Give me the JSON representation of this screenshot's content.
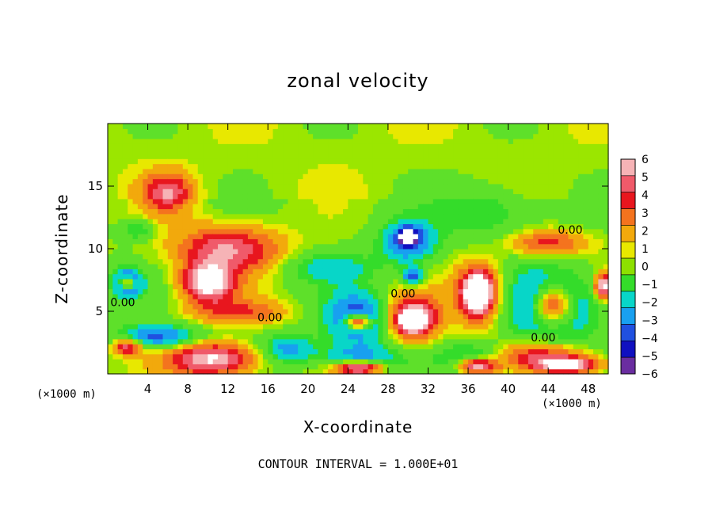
{
  "chart_data": {
    "type": "heatmap",
    "title": "zonal velocity",
    "xlabel": "X-coordinate",
    "ylabel": "Z-coordinate",
    "x_unit": "(×1000 m)",
    "x_ticks": [
      4,
      8,
      12,
      16,
      20,
      24,
      28,
      32,
      36,
      40,
      44,
      48
    ],
    "y_ticks": [
      5,
      10,
      15
    ],
    "xlim": [
      0,
      50
    ],
    "ylim": [
      0,
      20
    ],
    "colorbar": {
      "ticks": [
        6,
        5,
        4,
        3,
        2,
        1,
        0,
        -1,
        -2,
        -3,
        -4,
        -5,
        -6
      ],
      "colors": [
        "#f6b3b6",
        "#f05a6a",
        "#e8161e",
        "#f4731e",
        "#f2a90c",
        "#e8e800",
        "#8de000",
        "#34dc2a",
        "#08d6c8",
        "#18a0f0",
        "#2050e0",
        "#1010c0",
        "#6a2da0"
      ]
    },
    "contour_labels": [
      {
        "text": "0.00",
        "x": 1.5,
        "z": 5.4
      },
      {
        "text": "0.00",
        "x": 16.2,
        "z": 4.2
      },
      {
        "text": "0.00",
        "x": 29.5,
        "z": 6.1
      },
      {
        "text": "0.00",
        "x": 46.2,
        "z": 11.2
      },
      {
        "text": "0.00",
        "x": 43.5,
        "z": 2.6
      }
    ],
    "blobs": [
      {
        "x": 6,
        "z": 14.5,
        "rx": 3,
        "rz": 2,
        "v": 4.5
      },
      {
        "x": 12,
        "z": 10,
        "rx": 6.5,
        "rz": 2.4,
        "v": 5
      },
      {
        "x": 10,
        "z": 7.3,
        "rx": 3.2,
        "rz": 1.9,
        "v": 7
      },
      {
        "x": 2,
        "z": 7.3,
        "rx": 1.8,
        "rz": 1.3,
        "v": -6
      },
      {
        "x": 2,
        "z": 7.3,
        "rx": 1.1,
        "rz": 0.7,
        "v": 7
      },
      {
        "x": 13,
        "z": 5,
        "rx": 6,
        "rz": 1.3,
        "v": 3
      },
      {
        "x": 5,
        "z": 3,
        "rx": 5,
        "rz": 1.2,
        "v": -4
      },
      {
        "x": 2,
        "z": 2.2,
        "rx": 1.8,
        "rz": 0.8,
        "v": 5
      },
      {
        "x": 10.5,
        "z": 1.2,
        "rx": 5.5,
        "rz": 1.6,
        "v": 6.5
      },
      {
        "x": 18,
        "z": 2,
        "rx": 3.5,
        "rz": 1.5,
        "v": -3
      },
      {
        "x": 25,
        "z": 4.5,
        "rx": 4,
        "rz": 2.5,
        "v": -4.5
      },
      {
        "x": 25,
        "z": 4.2,
        "rx": 1.6,
        "rz": 0.8,
        "v": 7
      },
      {
        "x": 30.5,
        "z": 4.5,
        "rx": 3.2,
        "rz": 2.2,
        "v": 6
      },
      {
        "x": 30.5,
        "z": 4.3,
        "rx": 1.5,
        "rz": 1.0,
        "v": 7
      },
      {
        "x": 30,
        "z": 10.5,
        "rx": 3.5,
        "rz": 2.2,
        "v": -4
      },
      {
        "x": 30,
        "z": 11,
        "rx": 1.2,
        "rz": 0.8,
        "v": -6
      },
      {
        "x": 30.5,
        "z": 7.8,
        "rx": 1.2,
        "rz": 0.8,
        "v": -5
      },
      {
        "x": 37,
        "z": 6.5,
        "rx": 3,
        "rz": 3,
        "v": 5
      },
      {
        "x": 37,
        "z": 6.5,
        "rx": 1.6,
        "rz": 1.8,
        "v": 7
      },
      {
        "x": 44.5,
        "z": 5.5,
        "rx": 5.5,
        "rz": 3.5,
        "v": -4.5
      },
      {
        "x": 44.5,
        "z": 5.5,
        "rx": 2.5,
        "rz": 2.0,
        "v": 7
      },
      {
        "x": 44,
        "z": 10.5,
        "rx": 5,
        "rz": 1.3,
        "v": 3.5
      },
      {
        "x": 43,
        "z": 1.5,
        "rx": 6,
        "rz": 1.3,
        "v": 4
      },
      {
        "x": 46,
        "z": 0.7,
        "rx": 4,
        "rz": 0.8,
        "v": 6.5
      },
      {
        "x": 25,
        "z": 1.3,
        "rx": 5,
        "rz": 1.5,
        "v": -3
      },
      {
        "x": 25,
        "z": 0.5,
        "rx": 3,
        "rz": 0.7,
        "v": 7
      },
      {
        "x": 37,
        "z": 1.3,
        "rx": 4.5,
        "rz": 1.5,
        "v": -3
      },
      {
        "x": 37,
        "z": 0.7,
        "rx": 2.5,
        "rz": 0.8,
        "v": 7
      },
      {
        "x": 22,
        "z": 8.5,
        "rx": 6,
        "rz": 1.5,
        "v": -2
      },
      {
        "x": 38,
        "z": 13,
        "rx": 6,
        "rz": 3,
        "v": -1.8
      },
      {
        "x": 49.5,
        "z": 7,
        "rx": 1,
        "rz": 1.2,
        "v": 7
      },
      {
        "x": 3,
        "z": 11.5,
        "rx": 2,
        "rz": 1,
        "v": -2
      }
    ]
  }
}
